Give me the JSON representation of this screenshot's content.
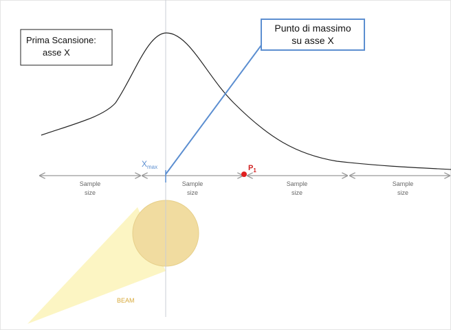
{
  "title_box": {
    "lines": [
      "Prima Scansione:",
      "asse X"
    ]
  },
  "callout": {
    "lines": [
      "Punto di massimo",
      "su asse X"
    ]
  },
  "xmax_label": {
    "base": "X",
    "sub": "max"
  },
  "p1_label": {
    "base": "P",
    "sub": "1"
  },
  "segments": [
    {
      "lines": [
        "Sample",
        "size"
      ]
    },
    {
      "lines": [
        "Sample",
        "size"
      ]
    },
    {
      "lines": [
        "Sample",
        "size"
      ]
    },
    {
      "lines": [
        "Sample",
        "size"
      ]
    }
  ],
  "beam_label": "BEAM"
}
